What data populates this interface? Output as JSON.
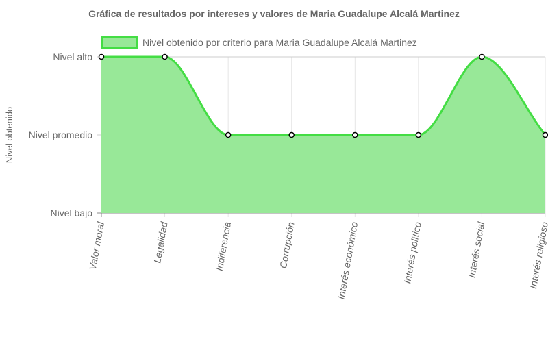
{
  "chart_data": {
    "type": "area",
    "title": "Gráfica de resultados por intereses y valores de Maria Guadalupe Alcalá Martinez",
    "ylabel": "Nivel obtenido",
    "xlabel": "",
    "categories": [
      "Valor moral",
      "Legalidad",
      "Indiferencia",
      "Corrupción",
      "Interés económico",
      "Interés político",
      "Interés social",
      "Interés religioso"
    ],
    "y_levels": [
      "Nivel bajo",
      "Nivel promedio",
      "Nivel alto"
    ],
    "ylim": [
      0,
      2
    ],
    "series": [
      {
        "name": "Nivel obtenido por criterio para Maria Guadalupe Alcalá Martinez",
        "values": [
          2,
          2,
          1,
          1,
          1,
          1,
          2,
          1
        ],
        "line_color": "#44dd44",
        "fill_color": "#98e898"
      }
    ],
    "grid": true,
    "legend_position": "top"
  }
}
